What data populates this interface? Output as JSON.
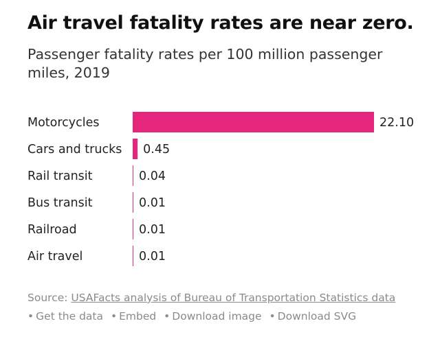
{
  "header": {
    "title": "Air travel fatality rates are near zero.",
    "subtitle": "Passenger fatality rates per 100 million passenger miles, 2019"
  },
  "chart_data": {
    "type": "bar",
    "orientation": "horizontal",
    "categories": [
      "Motorcycles",
      "Cars and trucks",
      "Rail transit",
      "Bus transit",
      "Railroad",
      "Air travel"
    ],
    "values": [
      22.1,
      0.45,
      0.04,
      0.01,
      0.01,
      0.01
    ],
    "value_labels": [
      "22.10",
      "0.45",
      "0.04",
      "0.01",
      "0.01",
      "0.01"
    ],
    "title": "Air travel fatality rates are near zero.",
    "subtitle": "Passenger fatality rates per 100 million passenger miles, 2019",
    "xlim": [
      0,
      22.1
    ],
    "grid": false,
    "bar_color": "#e5267c"
  },
  "footer": {
    "source_prefix": "Source: ",
    "source_link": "USAFacts analysis of Bureau of Transportation Statistics data",
    "separator": "•",
    "links": [
      "Get the data",
      "Embed",
      "Download image",
      "Download SVG"
    ]
  }
}
